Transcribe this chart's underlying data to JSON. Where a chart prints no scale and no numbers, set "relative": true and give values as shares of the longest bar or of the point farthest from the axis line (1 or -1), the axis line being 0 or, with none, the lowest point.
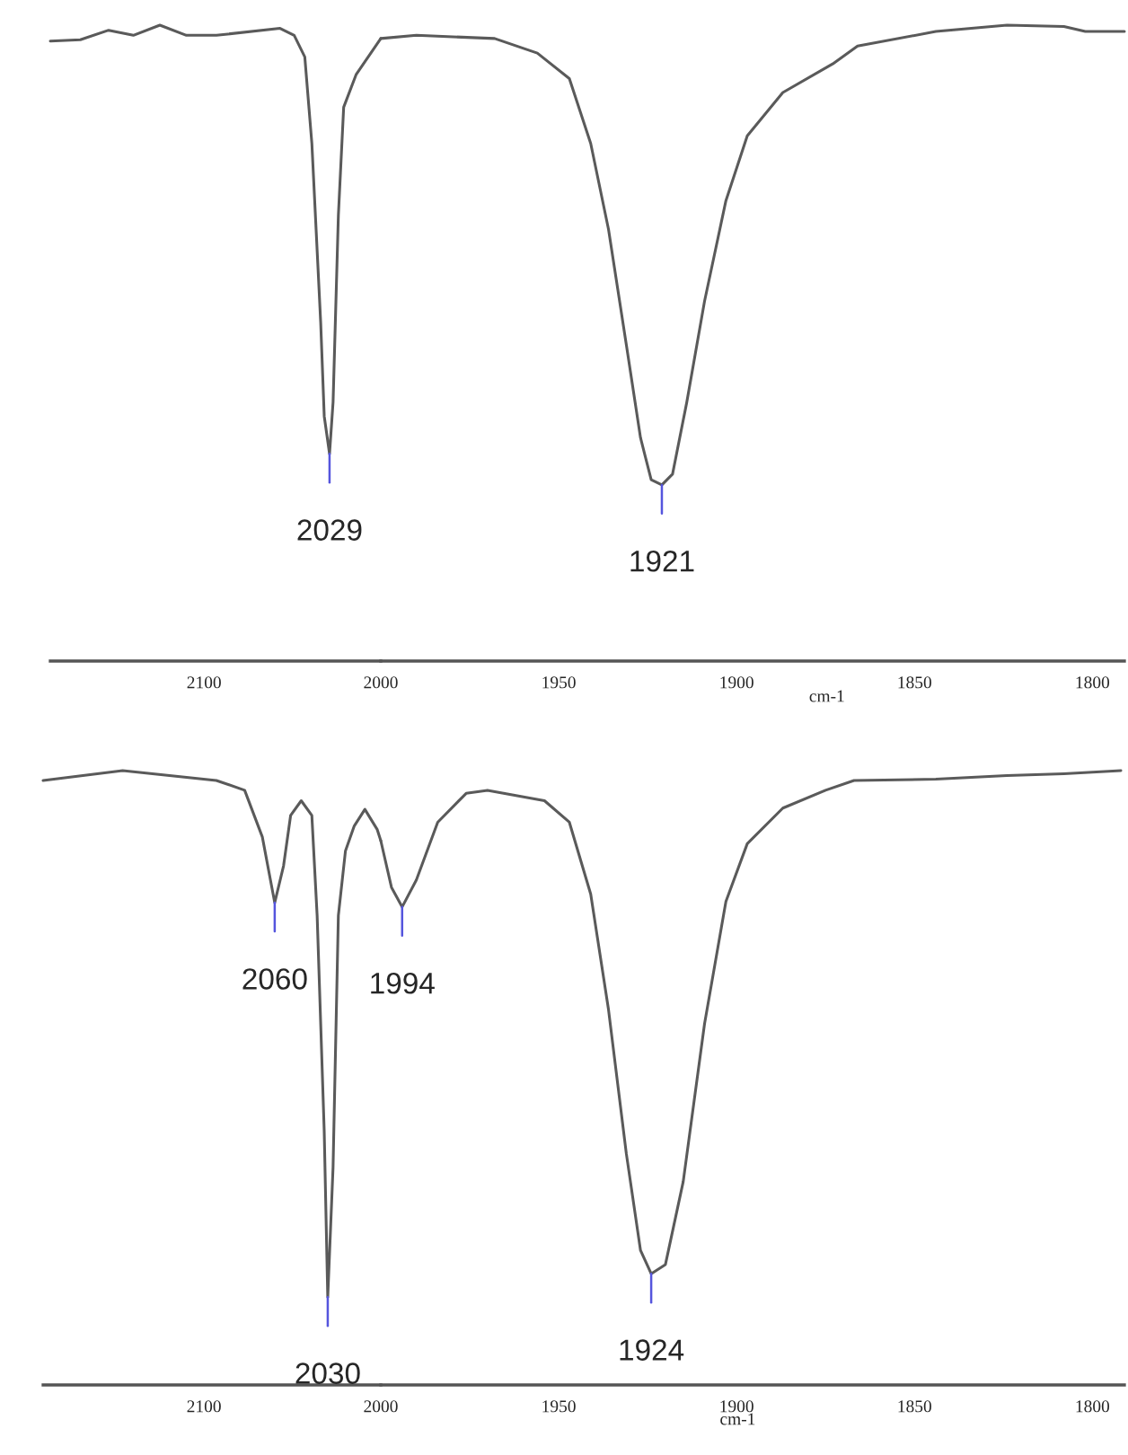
{
  "chart_data": [
    {
      "type": "line",
      "relative": true,
      "xlim": [
        2187,
        2000
      ],
      "xticks": [
        2100,
        2000
      ],
      "tick_labels": "x",
      "series": [
        {
          "color": "#5a5a5a",
          "x": [
            2187,
            2170,
            2154,
            2140,
            2125,
            2110,
            2093,
            2057,
            2049,
            2043,
            2039,
            2034,
            2032,
            2029,
            2027,
            2024,
            2021,
            2014,
            2000
          ],
          "values": [
            0.975,
            0.977,
            0.992,
            0.984,
            1.0,
            0.984,
            0.984,
            0.995,
            0.984,
            0.95,
            0.814,
            0.532,
            0.385,
            0.326,
            0.407,
            0.701,
            0.871,
            0.922,
            0.979
          ]
        }
      ],
      "annotations": [
        {
          "text": "2029",
          "x": 2029,
          "y": 0.326
        }
      ]
    },
    {
      "type": "line",
      "relative": true,
      "xlabel": "cm-1",
      "xlim": [
        2000,
        1791
      ],
      "xticks": [
        1950,
        1900,
        1850,
        1800
      ],
      "tick_labels": "x",
      "series": [
        {
          "color": "#5a5a5a",
          "x": [
            2000,
            1990,
            1968,
            1956,
            1947,
            1941,
            1936,
            1931,
            1927,
            1924,
            1921,
            1918,
            1914,
            1909,
            1903,
            1897,
            1887,
            1873,
            1866,
            1844,
            1824,
            1808,
            1802,
            1791
          ],
          "values": [
            0.979,
            0.984,
            0.979,
            0.956,
            0.916,
            0.814,
            0.679,
            0.498,
            0.351,
            0.285,
            0.277,
            0.294,
            0.407,
            0.566,
            0.724,
            0.826,
            0.894,
            0.939,
            0.967,
            0.99,
            1.0,
            0.998,
            0.99,
            0.99
          ]
        }
      ],
      "annotations": [
        {
          "text": "1921",
          "x": 1921,
          "y": 0.277
        }
      ]
    },
    {
      "type": "line",
      "relative": true,
      "xlim": [
        2191,
        2000
      ],
      "xticks": [
        2100,
        2000
      ],
      "tick_labels": "x",
      "series": [
        {
          "color": "#5a5a5a",
          "x": [
            2191,
            2146,
            2093,
            2077,
            2067,
            2060,
            2055,
            2051,
            2045,
            2039,
            2036,
            2032,
            2030,
            2027,
            2024,
            2020,
            2015,
            2009,
            2002,
            2000
          ],
          "values": [
            0.984,
            1.0,
            0.984,
            0.968,
            0.892,
            0.785,
            0.845,
            0.927,
            0.951,
            0.927,
            0.764,
            0.413,
            0.143,
            0.354,
            0.764,
            0.869,
            0.91,
            0.937,
            0.904,
            0.886
          ]
        }
      ],
      "annotations": [
        {
          "text": "2060",
          "x": 2060,
          "y": 0.785
        },
        {
          "text": "2030",
          "x": 2030,
          "y": 0.143
        }
      ]
    },
    {
      "type": "line",
      "relative": true,
      "xlabel": "cm-1",
      "xlim": [
        2000,
        1791
      ],
      "xticks": [
        1950,
        1900,
        1850,
        1800
      ],
      "tick_labels": "x",
      "series": [
        {
          "color": "#5a5a5a",
          "x": [
            2000,
            1997,
            1994,
            1990,
            1984,
            1976,
            1970,
            1954,
            1947,
            1941,
            1936,
            1931,
            1927,
            1924,
            1920,
            1915,
            1909,
            1903,
            1897,
            1887,
            1875,
            1867,
            1844,
            1824,
            1808,
            1792
          ],
          "values": [
            0.886,
            0.81,
            0.778,
            0.822,
            0.916,
            0.963,
            0.968,
            0.951,
            0.916,
            0.799,
            0.611,
            0.377,
            0.219,
            0.181,
            0.196,
            0.331,
            0.588,
            0.787,
            0.881,
            0.939,
            0.968,
            0.984,
            0.986,
            0.992,
            0.995,
            1.0
          ]
        }
      ],
      "annotations": [
        {
          "text": "1994",
          "x": 1994,
          "y": 0.778
        },
        {
          "text": "1924",
          "x": 1924,
          "y": 0.181
        }
      ]
    }
  ]
}
